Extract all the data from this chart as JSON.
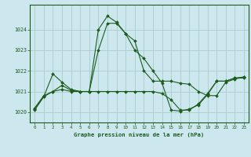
{
  "title": "Graphe pression niveau de la mer (hPa)",
  "bg_color": "#cce8ee",
  "grid_color": "#aacccc",
  "line_color": "#1e5c1e",
  "xlim": [
    -0.5,
    23.5
  ],
  "ylim": [
    1019.5,
    1025.2
  ],
  "yticks": [
    1020,
    1021,
    1022,
    1023,
    1024
  ],
  "xticks": [
    0,
    1,
    2,
    3,
    4,
    5,
    6,
    7,
    8,
    9,
    10,
    11,
    12,
    13,
    14,
    15,
    16,
    17,
    18,
    19,
    20,
    21,
    22,
    23
  ],
  "series1": [
    1020.2,
    1020.8,
    1021.0,
    1021.1,
    1021.0,
    1021.0,
    1021.0,
    1024.0,
    1024.65,
    1024.35,
    1023.8,
    1023.0,
    1022.6,
    1022.0,
    1021.4,
    1020.1,
    1020.05,
    1020.15,
    1020.35,
    1020.85,
    1021.5,
    1021.5,
    1021.65,
    1021.65
  ],
  "series2": [
    1020.1,
    1020.75,
    1021.85,
    1021.45,
    1021.1,
    1021.0,
    1021.0,
    1023.0,
    1024.3,
    1024.3,
    1023.8,
    1023.45,
    1022.0,
    1021.5,
    1021.5,
    1021.5,
    1021.4,
    1021.35,
    1021.0,
    1020.8,
    1020.8,
    1021.45,
    1021.6,
    1021.7
  ],
  "series3": [
    1020.15,
    1020.75,
    1021.0,
    1021.3,
    1021.05,
    1021.0,
    1021.0,
    1021.0,
    1021.0,
    1021.0,
    1021.0,
    1021.0,
    1021.0,
    1021.0,
    1020.9,
    1020.6,
    1020.1,
    1020.1,
    1020.4,
    1020.9,
    1021.5,
    1021.5,
    1021.65,
    1021.7
  ]
}
